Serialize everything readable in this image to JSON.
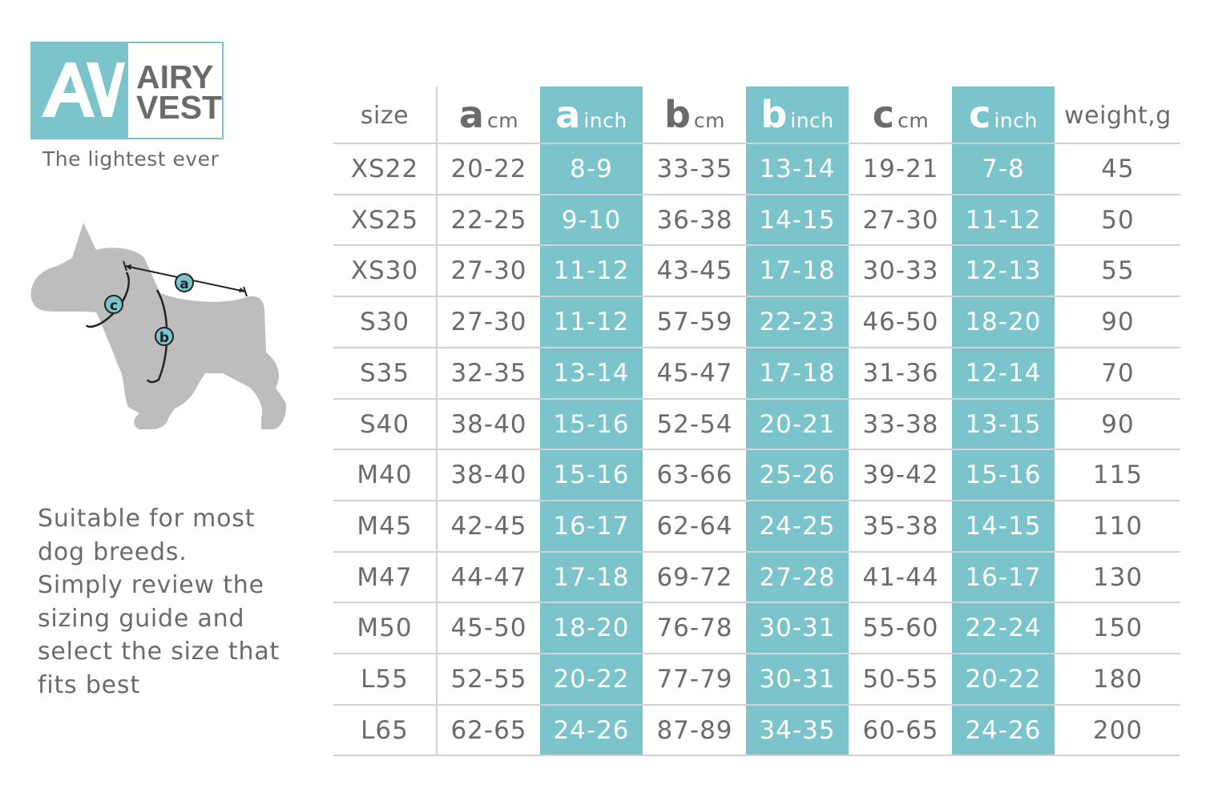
{
  "brand": {
    "mark": "AV",
    "name_line1": "AIRY",
    "name_line2": "VEST",
    "tagline": "The lightest ever",
    "accent_color": "#7cc4cc",
    "text_color": "#6b6b6b"
  },
  "diagram": {
    "label_a": "a",
    "label_b": "b",
    "label_c": "c"
  },
  "description": {
    "lines": [
      "Suitable for most",
      "dog breeds.",
      "Simply review the",
      "sizing guide and",
      "select the size that",
      "fits best"
    ]
  },
  "table": {
    "headers": [
      {
        "big": "",
        "unit": "size"
      },
      {
        "big": "a",
        "unit": "cm"
      },
      {
        "big": "a",
        "unit": "inch"
      },
      {
        "big": "b",
        "unit": "cm"
      },
      {
        "big": "b",
        "unit": "inch"
      },
      {
        "big": "c",
        "unit": "cm"
      },
      {
        "big": "c",
        "unit": "inch"
      },
      {
        "big": "",
        "unit": "weight,g"
      }
    ],
    "rows": [
      [
        "XS22",
        "20-22",
        "8-9",
        "33-35",
        "13-14",
        "19-21",
        "7-8",
        "45"
      ],
      [
        "XS25",
        "22-25",
        "9-10",
        "36-38",
        "14-15",
        "27-30",
        "11-12",
        "50"
      ],
      [
        "XS30",
        "27-30",
        "11-12",
        "43-45",
        "17-18",
        "30-33",
        "12-13",
        "55"
      ],
      [
        "S30",
        "27-30",
        "11-12",
        "57-59",
        "22-23",
        "46-50",
        "18-20",
        "90"
      ],
      [
        "S35",
        "32-35",
        "13-14",
        "45-47",
        "17-18",
        "31-36",
        "12-14",
        "70"
      ],
      [
        "S40",
        "38-40",
        "15-16",
        "52-54",
        "20-21",
        "33-38",
        "13-15",
        "90"
      ],
      [
        "M40",
        "38-40",
        "15-16",
        "63-66",
        "25-26",
        "39-42",
        "15-16",
        "115"
      ],
      [
        "M45",
        "42-45",
        "16-17",
        "62-64",
        "24-25",
        "35-38",
        "14-15",
        "110"
      ],
      [
        "M47",
        "44-47",
        "17-18",
        "69-72",
        "27-28",
        "41-44",
        "16-17",
        "130"
      ],
      [
        "M50",
        "45-50",
        "18-20",
        "76-78",
        "30-31",
        "55-60",
        "22-24",
        "150"
      ],
      [
        "L55",
        "52-55",
        "20-22",
        "77-79",
        "30-31",
        "50-55",
        "20-22",
        "180"
      ],
      [
        "L65",
        "62-65",
        "24-26",
        "87-89",
        "34-35",
        "60-65",
        "24-26",
        "200"
      ]
    ]
  }
}
